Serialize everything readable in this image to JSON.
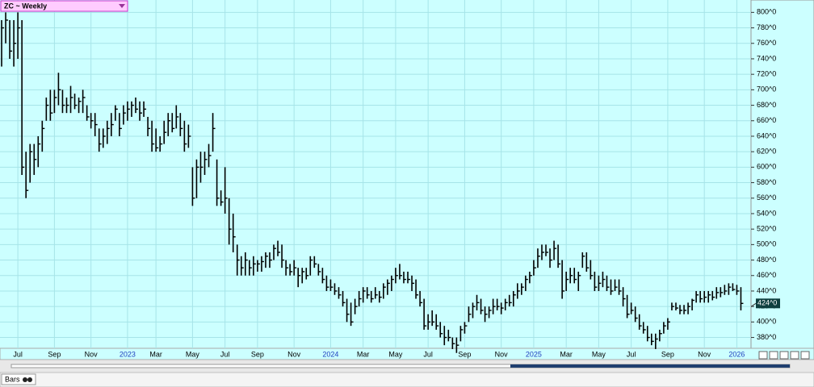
{
  "chart_data": {
    "type": "hlc",
    "title": "ZC ~ Weekly",
    "footer_tab": "Bars",
    "last_price_label": "424^0",
    "grid": true,
    "color": "#000000",
    "ylim": [
      366,
      816
    ],
    "yticks": [
      {
        "value": 380,
        "label": "380^0"
      },
      {
        "value": 400,
        "label": "400^0"
      },
      {
        "value": 420,
        "label": "420^0"
      },
      {
        "value": 440,
        "label": "440^0"
      },
      {
        "value": 460,
        "label": "460^0"
      },
      {
        "value": 480,
        "label": "480^0"
      },
      {
        "value": 500,
        "label": "500^0"
      },
      {
        "value": 520,
        "label": "520^0"
      },
      {
        "value": 540,
        "label": "540^0"
      },
      {
        "value": 560,
        "label": "560^0"
      },
      {
        "value": 580,
        "label": "580^0"
      },
      {
        "value": 600,
        "label": "600^0"
      },
      {
        "value": 620,
        "label": "620^0"
      },
      {
        "value": 640,
        "label": "640^0"
      },
      {
        "value": 660,
        "label": "660^0"
      },
      {
        "value": 680,
        "label": "680^0"
      },
      {
        "value": 700,
        "label": "700^0"
      },
      {
        "value": 720,
        "label": "720^0"
      },
      {
        "value": 740,
        "label": "740^0"
      },
      {
        "value": 760,
        "label": "760^0"
      },
      {
        "value": 780,
        "label": "780^0"
      },
      {
        "value": 800,
        "label": "800^0"
      }
    ],
    "categories": [
      null,
      null,
      null,
      null,
      "Jul",
      null,
      null,
      null,
      null,
      null,
      null,
      null,
      null,
      "Sep",
      null,
      null,
      null,
      null,
      null,
      null,
      null,
      null,
      "Nov",
      null,
      null,
      null,
      null,
      null,
      null,
      null,
      null,
      "2023",
      null,
      null,
      null,
      null,
      null,
      null,
      "Mar",
      null,
      null,
      null,
      null,
      null,
      null,
      null,
      null,
      "May",
      null,
      null,
      null,
      null,
      null,
      null,
      null,
      "Jul",
      null,
      null,
      null,
      null,
      null,
      null,
      null,
      "Sep",
      null,
      null,
      null,
      null,
      null,
      null,
      null,
      null,
      "Nov",
      null,
      null,
      null,
      null,
      null,
      null,
      null,
      null,
      "2024",
      null,
      null,
      null,
      null,
      null,
      null,
      null,
      "Mar",
      null,
      null,
      null,
      null,
      null,
      null,
      null,
      "May",
      null,
      null,
      null,
      null,
      null,
      null,
      null,
      "Jul",
      null,
      null,
      null,
      null,
      null,
      null,
      null,
      null,
      "Sep",
      null,
      null,
      null,
      null,
      null,
      null,
      null,
      null,
      "Nov",
      null,
      null,
      null,
      null,
      null,
      null,
      null,
      "2025",
      null,
      null,
      null,
      null,
      null,
      null,
      null,
      "Mar",
      null,
      null,
      null,
      null,
      null,
      null,
      null,
      "May",
      null,
      null,
      null,
      null,
      null,
      null,
      null,
      "Jul",
      null,
      null,
      null,
      null,
      null,
      null,
      null,
      null,
      "Sep",
      null,
      null,
      null,
      null,
      null,
      null,
      null,
      null,
      "Nov",
      null,
      null,
      null,
      null,
      null,
      null,
      null,
      "2026",
      null
    ],
    "high": [
      790,
      800,
      790,
      790,
      800,
      790,
      620,
      630,
      630,
      640,
      660,
      690,
      700,
      700,
      722,
      700,
      690,
      705,
      695,
      690,
      700,
      680,
      670,
      670,
      650,
      650,
      660,
      670,
      680,
      670,
      680,
      685,
      685,
      690,
      685,
      685,
      665,
      660,
      650,
      640,
      660,
      670,
      670,
      680,
      670,
      660,
      655,
      600,
      610,
      620,
      620,
      630,
      670,
      610,
      570,
      600,
      560,
      540,
      500,
      485,
      490,
      480,
      485,
      480,
      485,
      490,
      490,
      500,
      505,
      500,
      480,
      475,
      480,
      470,
      470,
      470,
      485,
      485,
      475,
      470,
      460,
      455,
      450,
      445,
      440,
      430,
      425,
      430,
      440,
      445,
      445,
      440,
      445,
      440,
      450,
      455,
      460,
      470,
      475,
      465,
      465,
      460,
      455,
      440,
      430,
      410,
      415,
      410,
      400,
      395,
      390,
      380,
      380,
      395,
      400,
      420,
      425,
      435,
      430,
      420,
      420,
      430,
      430,
      425,
      430,
      435,
      440,
      450,
      450,
      460,
      465,
      480,
      495,
      500,
      500,
      495,
      505,
      500,
      480,
      465,
      470,
      470,
      465,
      490,
      490,
      480,
      465,
      460,
      465,
      460,
      455,
      455,
      455,
      445,
      435,
      425,
      420,
      410,
      400,
      395,
      385,
      385,
      390,
      400,
      405,
      425,
      425,
      422,
      422,
      425,
      430,
      440,
      440,
      440,
      440,
      440,
      445,
      445,
      448,
      450,
      450,
      448,
      445
    ],
    "low": [
      730,
      760,
      740,
      730,
      740,
      590,
      560,
      580,
      590,
      600,
      620,
      660,
      660,
      670,
      680,
      670,
      670,
      670,
      675,
      670,
      670,
      660,
      650,
      640,
      620,
      625,
      630,
      640,
      660,
      640,
      655,
      660,
      665,
      670,
      660,
      665,
      640,
      620,
      620,
      620,
      630,
      640,
      645,
      650,
      640,
      620,
      625,
      550,
      560,
      580,
      590,
      600,
      620,
      550,
      550,
      540,
      500,
      490,
      460,
      460,
      460,
      460,
      460,
      465,
      465,
      470,
      470,
      480,
      485,
      470,
      460,
      460,
      460,
      445,
      450,
      455,
      460,
      470,
      460,
      450,
      440,
      440,
      435,
      430,
      420,
      400,
      395,
      410,
      420,
      425,
      430,
      425,
      430,
      425,
      430,
      435,
      440,
      450,
      455,
      450,
      450,
      440,
      430,
      420,
      390,
      390,
      395,
      390,
      380,
      370,
      375,
      365,
      360,
      375,
      385,
      400,
      405,
      415,
      410,
      400,
      405,
      410,
      415,
      410,
      415,
      420,
      420,
      430,
      435,
      440,
      450,
      460,
      470,
      480,
      485,
      470,
      480,
      470,
      430,
      440,
      450,
      450,
      440,
      470,
      465,
      455,
      440,
      440,
      445,
      440,
      435,
      440,
      435,
      420,
      405,
      410,
      400,
      390,
      385,
      375,
      370,
      365,
      375,
      385,
      390,
      415,
      415,
      410,
      410,
      410,
      415,
      425,
      425,
      425,
      425,
      428,
      430,
      432,
      435,
      435,
      440,
      435,
      415
    ],
    "close": [
      780,
      790,
      750,
      760,
      780,
      600,
      570,
      620,
      610,
      630,
      650,
      680,
      670,
      690,
      700,
      680,
      680,
      690,
      680,
      685,
      690,
      665,
      660,
      655,
      630,
      640,
      650,
      655,
      675,
      650,
      670,
      675,
      680,
      675,
      670,
      675,
      650,
      630,
      625,
      630,
      645,
      660,
      650,
      665,
      650,
      630,
      640,
      560,
      600,
      600,
      610,
      615,
      650,
      560,
      555,
      560,
      520,
      510,
      480,
      470,
      480,
      470,
      475,
      475,
      478,
      485,
      480,
      495,
      490,
      480,
      470,
      465,
      470,
      460,
      465,
      460,
      480,
      475,
      465,
      455,
      445,
      445,
      440,
      435,
      425,
      410,
      400,
      420,
      430,
      440,
      435,
      430,
      435,
      432,
      445,
      450,
      455,
      460,
      460,
      455,
      455,
      450,
      435,
      425,
      395,
      400,
      400,
      395,
      385,
      380,
      380,
      372,
      370,
      390,
      395,
      410,
      420,
      425,
      415,
      410,
      415,
      420,
      420,
      418,
      425,
      425,
      435,
      440,
      445,
      455,
      460,
      470,
      485,
      490,
      490,
      480,
      495,
      475,
      440,
      455,
      460,
      455,
      460,
      485,
      470,
      460,
      445,
      450,
      455,
      445,
      440,
      445,
      440,
      430,
      410,
      415,
      405,
      395,
      390,
      380,
      375,
      378,
      385,
      395,
      400,
      420,
      418,
      415,
      415,
      420,
      428,
      435,
      430,
      432,
      435,
      432,
      438,
      438,
      440,
      445,
      442,
      440,
      424
    ]
  }
}
